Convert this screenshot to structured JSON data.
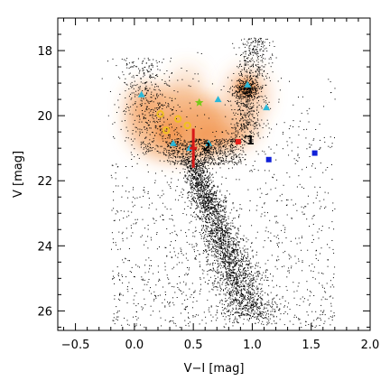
{
  "chart_data": {
    "type": "scatter",
    "xlabel": "V−I [mag]",
    "ylabel": "V [mag]",
    "xlim": [
      -0.65,
      2.0
    ],
    "ylim": [
      26.6,
      17.0
    ],
    "y_inverted": true,
    "x_ticks": [
      -0.5,
      0.0,
      0.5,
      1.0,
      1.5,
      2.0
    ],
    "x_tick_labels": [
      "−0.5",
      "0.0",
      "0.5",
      "1.0",
      "1.5",
      "2.0"
    ],
    "y_ticks": [
      18,
      20,
      22,
      24,
      26
    ],
    "y_tick_labels": [
      "18",
      "20",
      "22",
      "24",
      "26"
    ],
    "grid": false,
    "colors": {
      "field_stars": "#000000",
      "density_map": "#f08a3c",
      "squares_red": "#e8201a",
      "squares_blue": "#1020d8",
      "triangles": "#2ab8d8",
      "circles": "#f0c020",
      "star": "#7ac81a",
      "error_bar": "#d81818"
    },
    "series": [
      {
        "marker": "square-red",
        "x": [
          0.88
        ],
        "y": [
          20.8
        ]
      },
      {
        "marker": "square-blue",
        "x": [
          1.14,
          1.53
        ],
        "y": [
          21.35,
          21.15
        ]
      },
      {
        "marker": "triangle",
        "x": [
          0.06,
          0.33,
          0.47,
          0.63,
          0.71,
          0.96,
          1.12
        ],
        "y": [
          19.35,
          20.85,
          21.0,
          20.85,
          19.5,
          19.05,
          19.75
        ]
      },
      {
        "marker": "circle",
        "x": [
          0.22,
          0.27,
          0.37,
          0.45
        ],
        "y": [
          19.95,
          20.45,
          20.1,
          20.3
        ]
      },
      {
        "marker": "star",
        "x": [
          0.55
        ],
        "y": [
          19.6
        ]
      }
    ],
    "error_bar": {
      "x": 0.5,
      "y": 21.0,
      "y_low": 20.4,
      "y_high": 21.6,
      "x_low": 0.47,
      "x_high": 0.53
    },
    "annotations": [
      {
        "text": "1",
        "x": 0.95,
        "y": 20.75
      },
      {
        "text": "2",
        "x": 0.58,
        "y": 20.95
      }
    ]
  }
}
